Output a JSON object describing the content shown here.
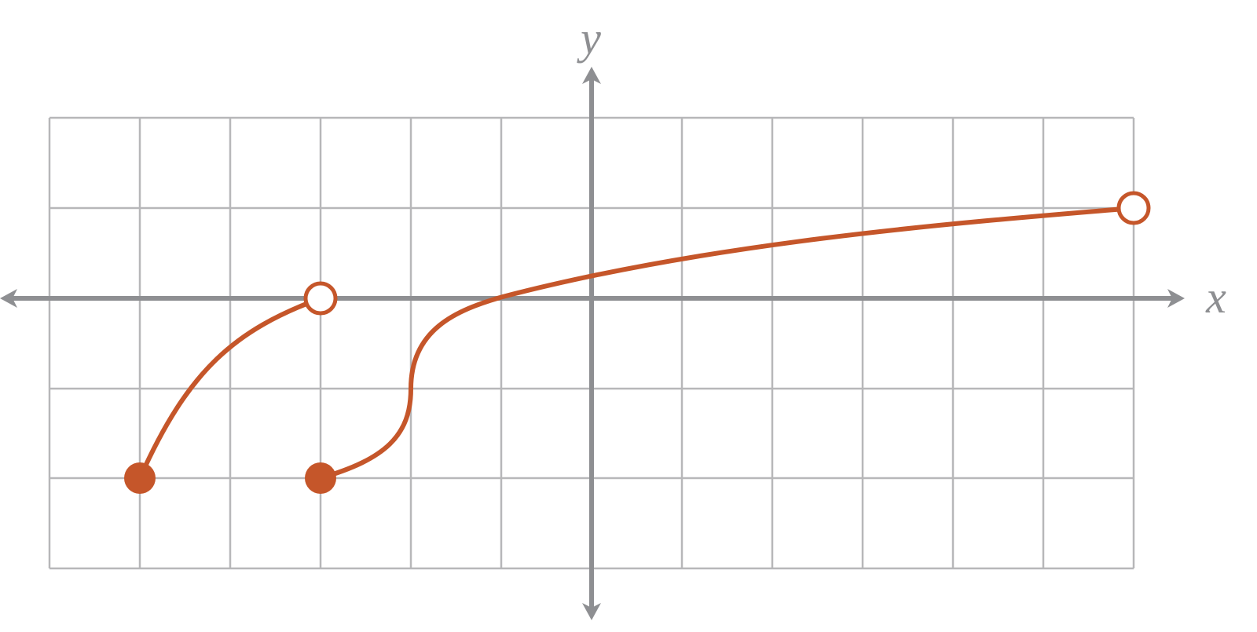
{
  "axes": {
    "x_label": "x",
    "y_label": "y"
  }
}
